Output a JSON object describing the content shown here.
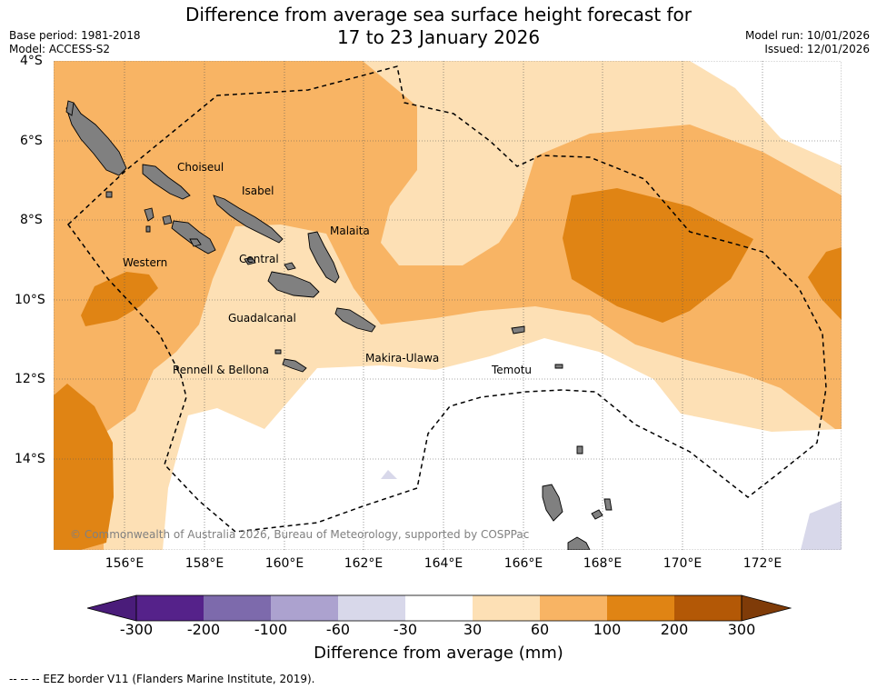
{
  "header": {
    "title_line1": "Difference from average sea surface height forecast for",
    "title_line2": "17 to 23 January 2026",
    "base_period": "Base period: 1981-2018",
    "model": "Model: ACCESS-S2",
    "model_run": "Model run: 10/01/2026",
    "issued": "Issued: 12/01/2026"
  },
  "axes": {
    "lat_labels": [
      "4°S",
      "6°S",
      "8°S",
      "10°S",
      "12°S",
      "14°S"
    ],
    "lon_labels": [
      "156°E",
      "158°E",
      "160°E",
      "162°E",
      "164°E",
      "166°E",
      "168°E",
      "170°E",
      "172°E"
    ]
  },
  "provinces": [
    "Choiseul",
    "Isabel",
    "Malaita",
    "Western",
    "Central",
    "Guadalcanal",
    "Makira-Ulawa",
    "Rennell & Bellona",
    "Temotu"
  ],
  "copyright": "© Commonwealth of Australia 2026, Bureau of Meteorology, supported by COSPPac",
  "colorbar": {
    "title": "Difference from average (mm)",
    "ticks": [
      "-300",
      "-200",
      "-100",
      "-60",
      "-30",
      "30",
      "60",
      "100",
      "200",
      "300"
    ],
    "colors": [
      "#4a1c7a",
      "#55228a",
      "#7d6aac",
      "#aca2cf",
      "#d8d8ea",
      "#ffffff",
      "#fde0b5",
      "#f8b464",
      "#e08414",
      "#b35806",
      "#7f3b08"
    ]
  },
  "legend": {
    "eez_text": "--  --  -- EEZ border V11 (Flanders Marine Institute, 2019)."
  }
}
